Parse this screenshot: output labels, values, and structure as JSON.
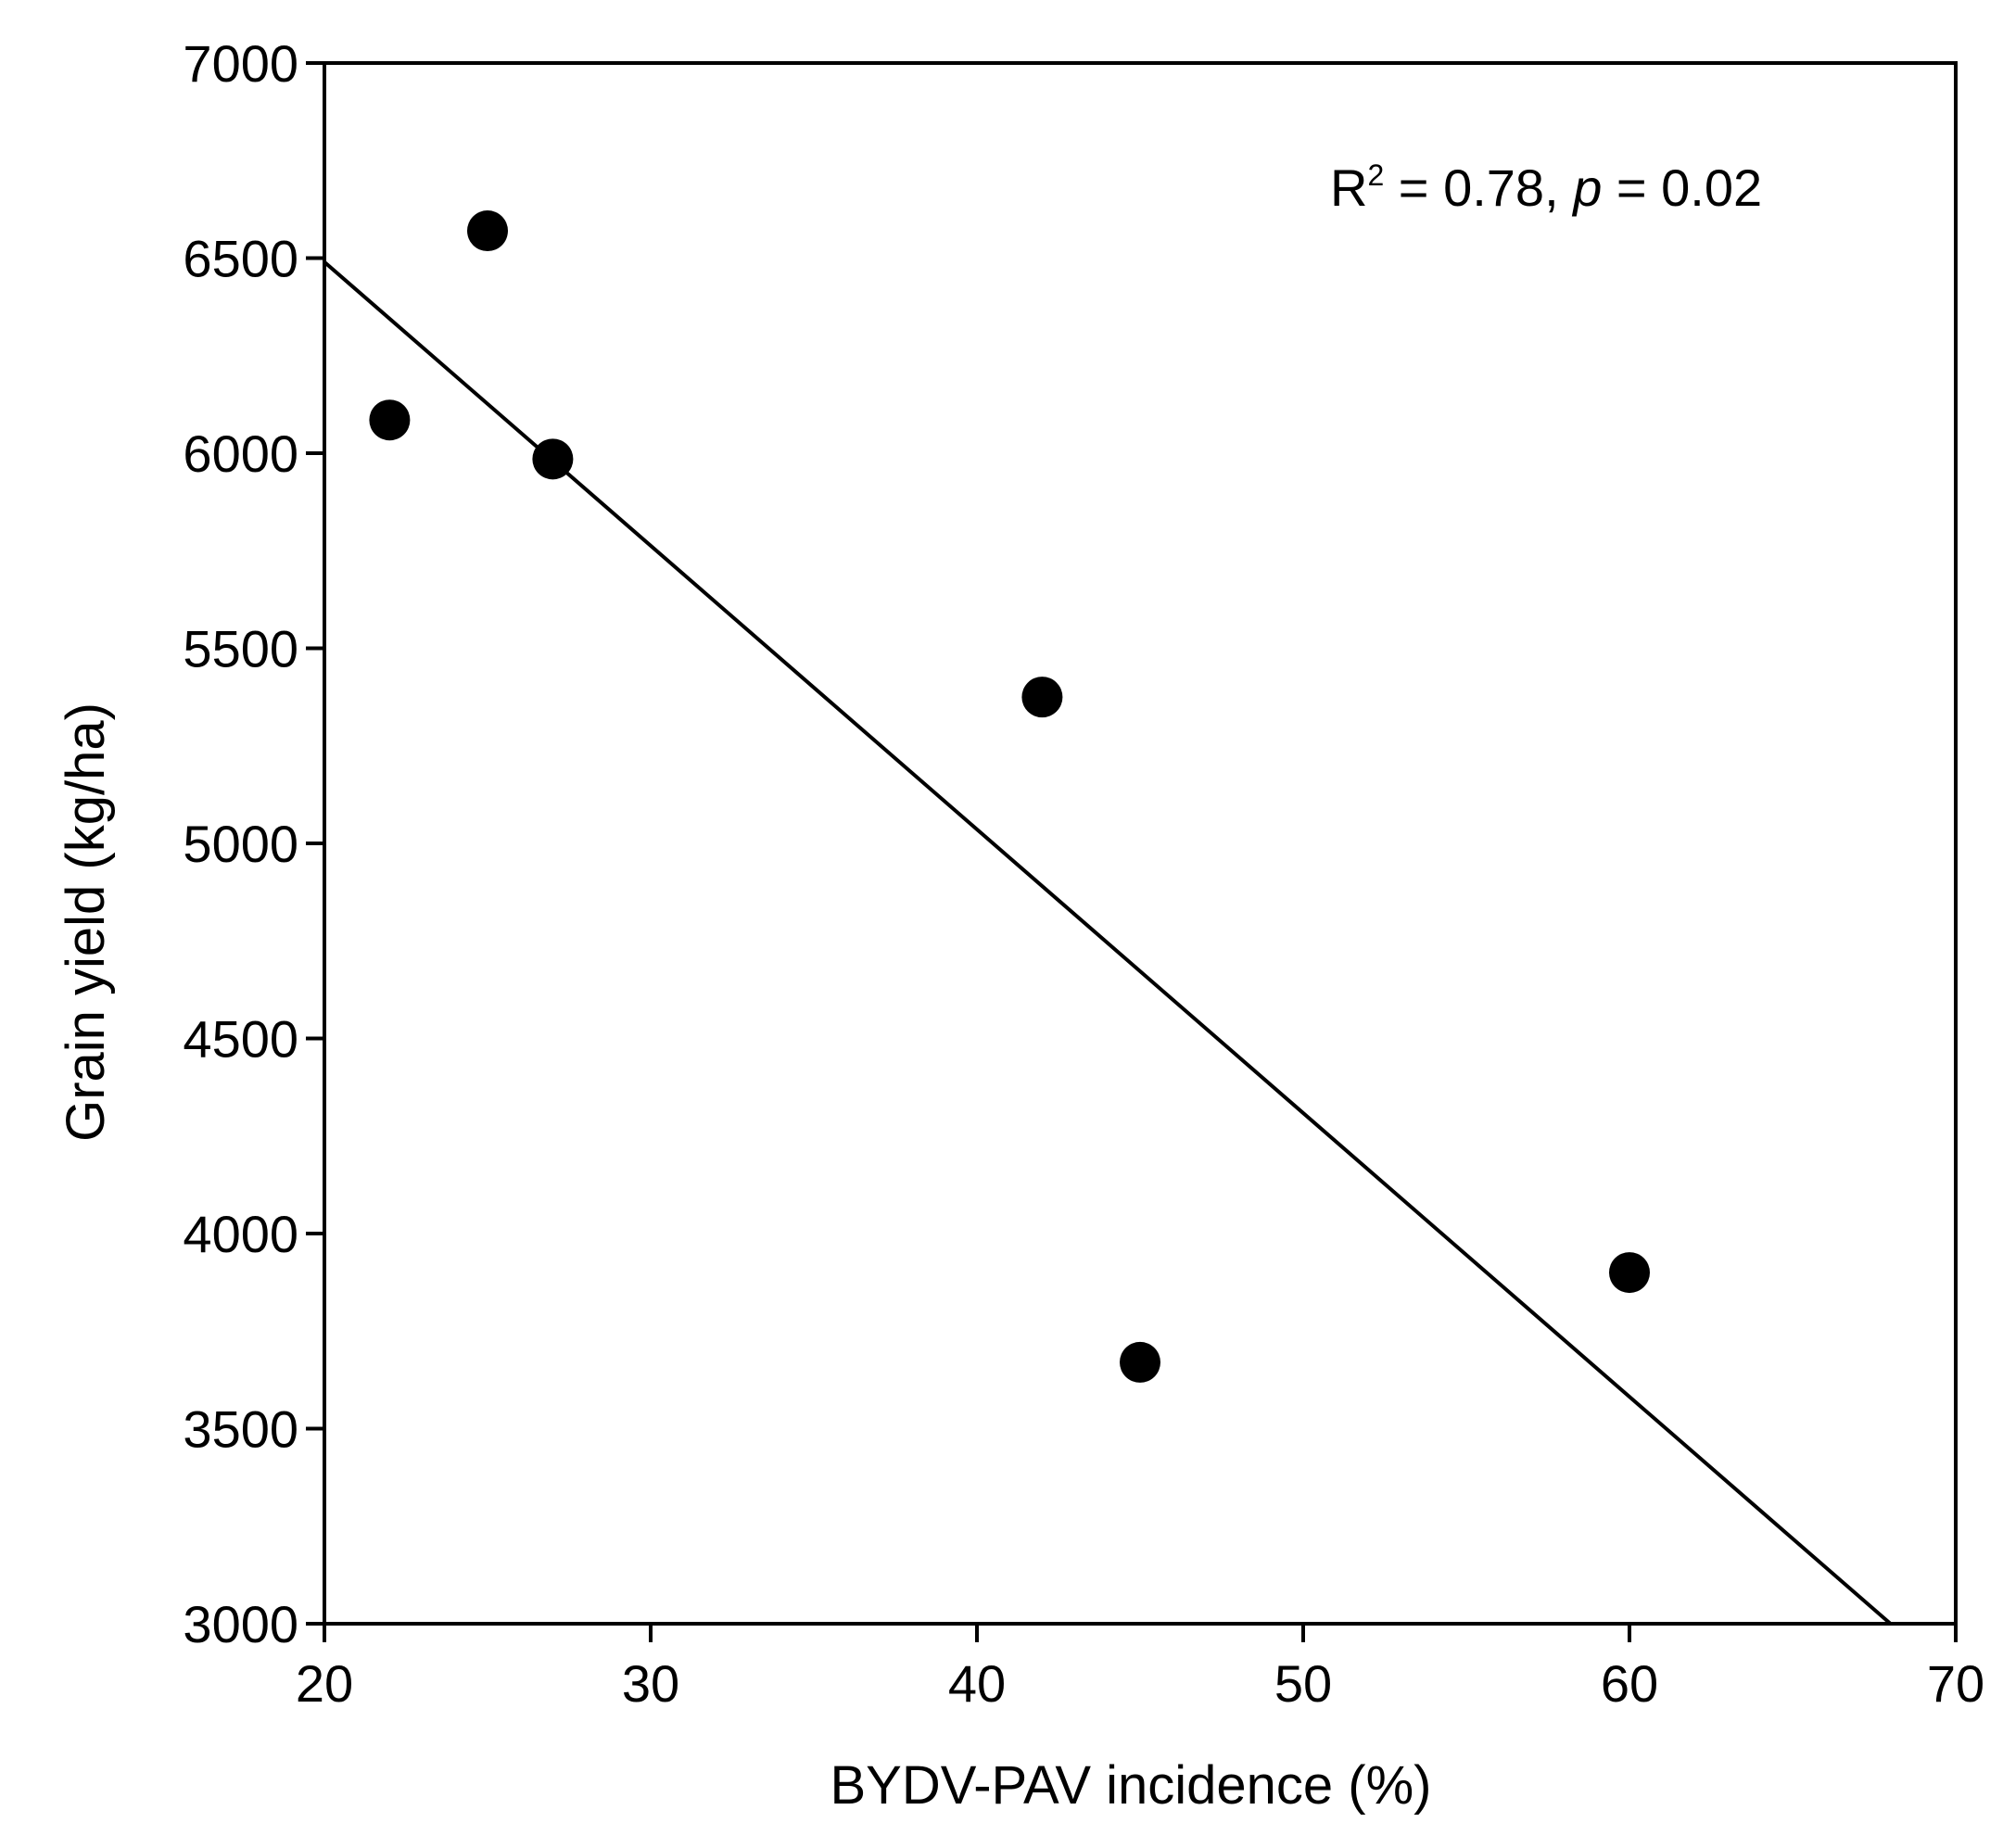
{
  "chart_data": {
    "type": "scatter",
    "title": "",
    "xlabel": "BYDV-PAV incidence (%)",
    "ylabel": "Grain yield (kg/ha)",
    "xlim": [
      20,
      70
    ],
    "ylim": [
      3000,
      7000
    ],
    "x_ticks": [
      20,
      30,
      40,
      50,
      60,
      70
    ],
    "y_ticks": [
      3000,
      3500,
      4000,
      4500,
      5000,
      5500,
      6000,
      6500,
      7000
    ],
    "grid": false,
    "points": [
      {
        "x": 22,
        "y": 6085
      },
      {
        "x": 25,
        "y": 6570
      },
      {
        "x": 27,
        "y": 5985
      },
      {
        "x": 42,
        "y": 5375
      },
      {
        "x": 45,
        "y": 3670
      },
      {
        "x": 60,
        "y": 3900
      }
    ],
    "trendline": {
      "type": "linear",
      "from": {
        "x": 20,
        "y": 6490
      },
      "to": {
        "x": 68,
        "y": 3000
      }
    },
    "annotation": {
      "r_symbol": "R",
      "r_superscript": "2",
      "r_value": " = 0.78, ",
      "p_symbol": "p",
      "p_value": " = 0.02"
    },
    "colors": {
      "marker": "#000000",
      "line": "#000000",
      "axes": "#000000"
    }
  }
}
